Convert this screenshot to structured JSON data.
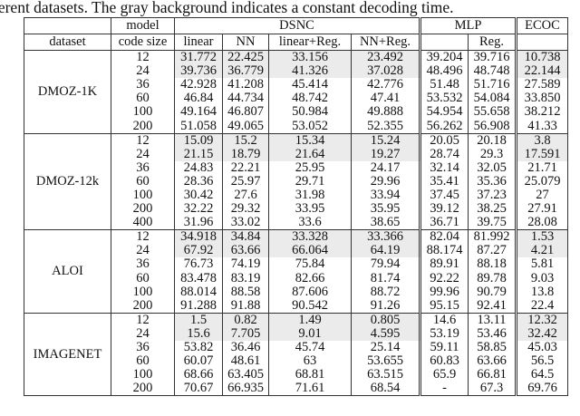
{
  "caption": "ferent datasets. The gray background indicates a constant decoding time.",
  "header": {
    "model_label": "model",
    "dsnc": "DSNC",
    "mlp": "MLP",
    "ecoc": "ECOC",
    "dataset_label": "dataset",
    "code_size_label": "code size",
    "linear": "linear",
    "nn": "NN",
    "linear_reg": "linear+Reg.",
    "nn_reg": "NN+Reg.",
    "mlp_plain": "",
    "mlp_reg": "Reg.",
    "ecoc_sub": ""
  },
  "gray_color": "#ebebeb",
  "groups": [
    {
      "name": "DMOZ-1K",
      "rows": [
        [
          "12",
          "31.772",
          "22.425",
          "33.156",
          "23.492",
          "39.204",
          "39.716",
          "10.738"
        ],
        [
          "24",
          "39.736",
          "36.779",
          "41.326",
          "37.028",
          "48.496",
          "48.748",
          "22.144"
        ],
        [
          "36",
          "42.928",
          "41.208",
          "45.414",
          "42.776",
          "51.48",
          "51.716",
          "27.589"
        ],
        [
          "60",
          "46.84",
          "44.734",
          "48.742",
          "47.41",
          "53.532",
          "54.084",
          "33.850"
        ],
        [
          "100",
          "49.164",
          "46.807",
          "50.984",
          "49.888",
          "54.954",
          "55.658",
          "38.212"
        ],
        [
          "200",
          "51.058",
          "49.065",
          "53.052",
          "52.355",
          "56.262",
          "56.908",
          "41.33"
        ]
      ]
    },
    {
      "name": "DMOZ-12k",
      "rows": [
        [
          "12",
          "15.09",
          "15.2",
          "15.34",
          "15.24",
          "20.05",
          "20.18",
          "3.8"
        ],
        [
          "24",
          "21.15",
          "18.79",
          "21.64",
          "19.27",
          "28.74",
          "29.3",
          "17.591"
        ],
        [
          "36",
          "24.83",
          "22.21",
          "25.95",
          "24.17",
          "32.14",
          "32.05",
          "21.71"
        ],
        [
          "60",
          "28.36",
          "25.97",
          "29.71",
          "29.96",
          "35.41",
          "35.36",
          "25.079"
        ],
        [
          "100",
          "30.42",
          "27.6",
          "31.98",
          "33.94",
          "37.45",
          "37.23",
          "27"
        ],
        [
          "200",
          "32.22",
          "29.32",
          "33.95",
          "35.95",
          "39.12",
          "38.25",
          "27.91"
        ],
        [
          "400",
          "31.96",
          "33.02",
          "33.6",
          "38.65",
          "36.71",
          "39.75",
          "28.08"
        ]
      ]
    },
    {
      "name": "ALOI",
      "rows": [
        [
          "12",
          "34.918",
          "34.84",
          "33.328",
          "33.366",
          "82.04",
          "81.992",
          "1.53"
        ],
        [
          "24",
          "67.92",
          "63.66",
          "66.064",
          "64.19",
          "88.174",
          "87.27",
          "4.21"
        ],
        [
          "36",
          "76.73",
          "74.19",
          "75.84",
          "79.94",
          "89.91",
          "88.18",
          "5.81"
        ],
        [
          "60",
          "83.478",
          "83.19",
          "82.66",
          "81.74",
          "92.22",
          "89.78",
          "9.03"
        ],
        [
          "100",
          "88.014",
          "88.58",
          "87.606",
          "88.72",
          "99.96",
          "90.79",
          "13.8"
        ],
        [
          "200",
          "91.288",
          "91.88",
          "90.542",
          "91.26",
          "95.15",
          "92.41",
          "22.4"
        ]
      ]
    },
    {
      "name": "IMAGENET",
      "rows": [
        [
          "12",
          "1.5",
          "0.82",
          "1.49",
          "0.805",
          "14.6",
          "13.11",
          "12.32"
        ],
        [
          "24",
          "15.6",
          "7.705",
          "9.01",
          "4.595",
          "53.19",
          "53.46",
          "32.42"
        ],
        [
          "36",
          "53.82",
          "36.46",
          "45.74",
          "25.14",
          "59.11",
          "58.85",
          "45.03"
        ],
        [
          "60",
          "60.07",
          "48.61",
          "63",
          "53.655",
          "60.83",
          "63.66",
          "56.5"
        ],
        [
          "100",
          "68.66",
          "63.405",
          "68.81",
          "63.515",
          "65.9",
          "66.81",
          "64.5"
        ],
        [
          "200",
          "70.67",
          "66.935",
          "71.61",
          "68.54",
          "-",
          "67.3",
          "69.76"
        ]
      ]
    }
  ]
}
